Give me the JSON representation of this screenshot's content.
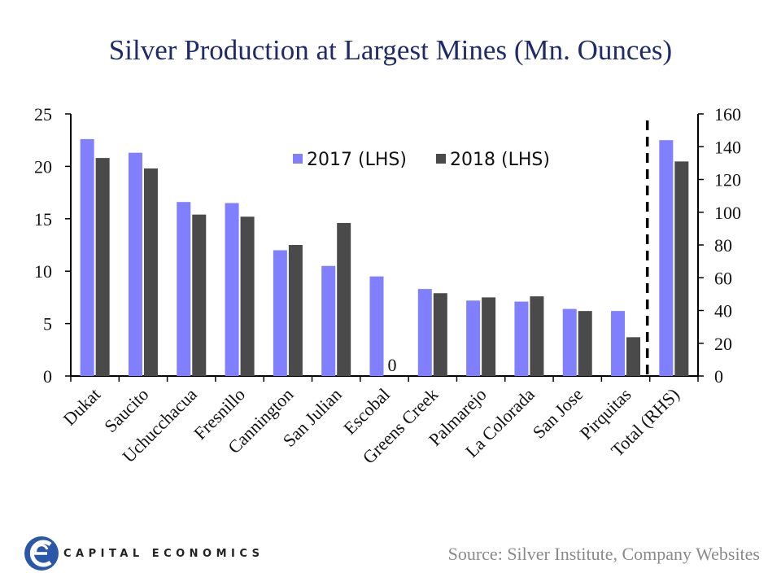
{
  "chart_data": {
    "type": "bar",
    "title": "Silver Production at Largest Mines (Mn. Ounces)",
    "categories": [
      "Dukat",
      "Saucito",
      "Uchucchacua",
      "Fresnillo",
      "Cannington",
      "San Julian",
      "Escobal",
      "Greens Creek",
      "Palmarejo",
      "La Colorada",
      "San Jose",
      "Pirquitas",
      "Total (RHS)"
    ],
    "series": [
      {
        "name": "2017 (LHS)",
        "color": "#8080ff",
        "values": [
          22.6,
          21.3,
          16.6,
          16.5,
          12.0,
          10.5,
          9.5,
          8.3,
          7.2,
          7.1,
          6.4,
          6.2,
          144
        ]
      },
      {
        "name": "2018 (LHS)",
        "color": "#4a4a4a",
        "values": [
          20.8,
          19.8,
          15.4,
          15.2,
          12.5,
          14.6,
          0,
          7.9,
          7.5,
          7.6,
          6.2,
          3.7,
          131
        ]
      }
    ],
    "rhs_category": "Total (RHS)",
    "left_axis": {
      "min": 0,
      "max": 25,
      "ticks": [
        "0",
        "5",
        "10",
        "15",
        "20",
        "25"
      ]
    },
    "right_axis": {
      "min": 0,
      "max": 160,
      "ticks": [
        "0",
        "20",
        "40",
        "60",
        "80",
        "100",
        "120",
        "140",
        "160"
      ]
    },
    "legend": [
      "2017 (LHS)",
      "2018 (LHS)"
    ],
    "legend_position": "top-center",
    "annotations": [
      {
        "category": "Escobal",
        "series": "2018 (LHS)",
        "text": "0"
      }
    ],
    "xlabel": "",
    "ylabel": ""
  },
  "footer": {
    "logo_text": "CAPITAL ECONOMICS",
    "source": "Source: Silver Institute, Company Websites"
  }
}
